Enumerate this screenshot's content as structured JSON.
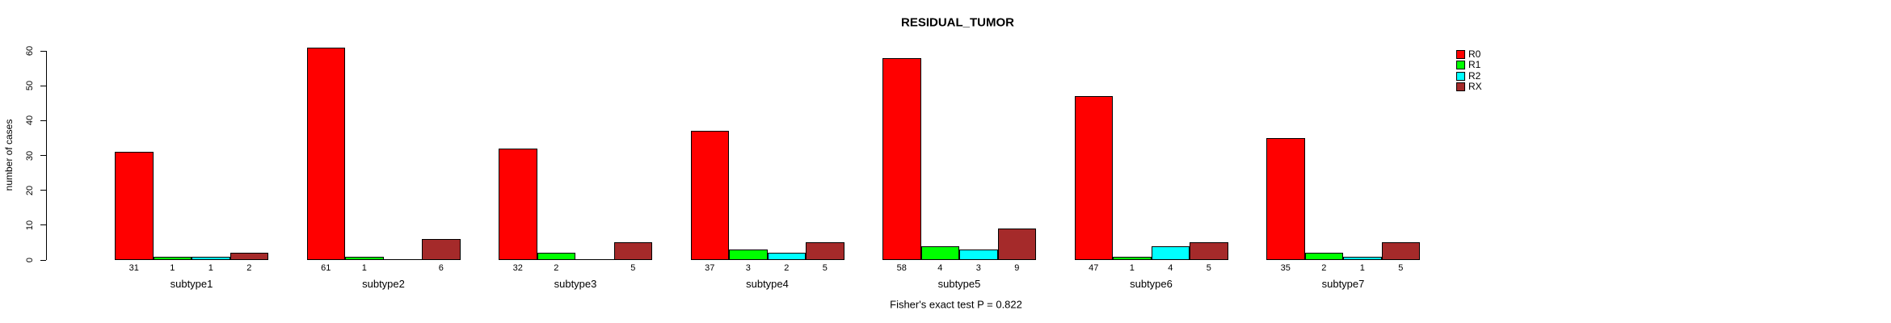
{
  "chart_data": {
    "type": "bar",
    "title": "RESIDUAL_TUMOR",
    "subtitle": "Fisher's exact test P = 0.822",
    "xlabel": "",
    "ylabel": "number of cases",
    "ylim": [
      0,
      60
    ],
    "yticks": [
      0,
      10,
      20,
      30,
      40,
      50,
      60
    ],
    "grid": false,
    "legend_position": "right of plot, upper area",
    "bar_value_labels_shown": true,
    "zero_value_labels_hidden": true,
    "categories": [
      "subtype1",
      "subtype2",
      "subtype3",
      "subtype4",
      "subtype5",
      "subtype6",
      "subtype7"
    ],
    "series": [
      {
        "name": "R0",
        "color": "#ff0000",
        "values": [
          31,
          61,
          32,
          37,
          58,
          47,
          35
        ]
      },
      {
        "name": "R1",
        "color": "#00ff00",
        "values": [
          1,
          1,
          2,
          3,
          4,
          1,
          2
        ]
      },
      {
        "name": "R2",
        "color": "#00ffff",
        "values": [
          1,
          0,
          0,
          2,
          3,
          4,
          1
        ]
      },
      {
        "name": "RX",
        "color": "#a52a2a",
        "values": [
          2,
          6,
          5,
          5,
          9,
          5,
          5
        ]
      }
    ]
  }
}
